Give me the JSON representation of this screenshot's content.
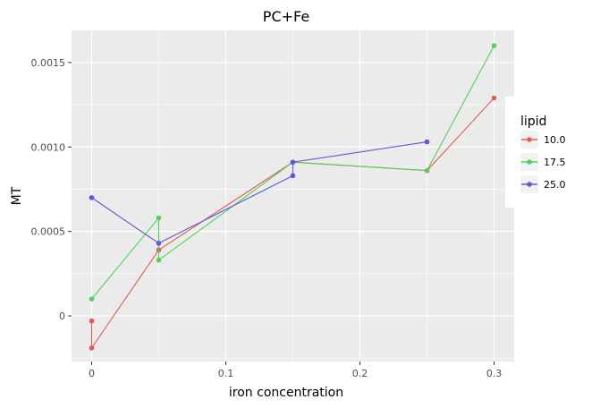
{
  "chart_data": {
    "type": "line",
    "title": "PC+Fe",
    "xlabel": "iron concentration",
    "ylabel": "MT",
    "xlim": [
      -0.015,
      0.315
    ],
    "ylim": [
      -0.00027,
      0.00169
    ],
    "x_ticks": [
      0,
      0.05,
      0.1,
      0.15,
      0.2,
      0.25,
      0.3
    ],
    "x_tick_labels": [
      "0",
      "0.1",
      "0.2",
      "0.3"
    ],
    "x_tick_label_values": [
      0,
      0.1,
      0.2,
      0.3
    ],
    "y_ticks": [
      -0.00025,
      0,
      0.00025,
      0.0005,
      0.00075,
      0.001,
      0.00125,
      0.0015
    ],
    "y_tick_labels": [
      "0",
      "0.0005",
      "0.0010",
      "0.0015"
    ],
    "y_tick_label_values": [
      0,
      0.0005,
      0.001,
      0.0015
    ],
    "grid": true,
    "legend": {
      "title": "lipid",
      "position": "right"
    },
    "series": [
      {
        "name": "10.0",
        "color": "#e15c50",
        "points": [
          [
            0,
            -3e-05
          ],
          [
            0,
            -0.00019
          ],
          [
            0.05,
            0.00039
          ],
          [
            0.15,
            0.00091
          ],
          [
            0.25,
            0.00086
          ],
          [
            0.3,
            0.00129
          ]
        ]
      },
      {
        "name": "17.5",
        "color": "#52d155",
        "points": [
          [
            0,
            0.0001
          ],
          [
            0.05,
            0.00058
          ],
          [
            0.05,
            0.00033
          ],
          [
            0.15,
            0.00091
          ],
          [
            0.25,
            0.00086
          ],
          [
            0.3,
            0.0016
          ]
        ]
      },
      {
        "name": "25.0",
        "color": "#5d5ad6",
        "points": [
          [
            0,
            0.0007
          ],
          [
            0.05,
            0.00043
          ],
          [
            0.15,
            0.00083
          ],
          [
            0.15,
            0.00091
          ],
          [
            0.25,
            0.00103
          ]
        ]
      }
    ]
  }
}
